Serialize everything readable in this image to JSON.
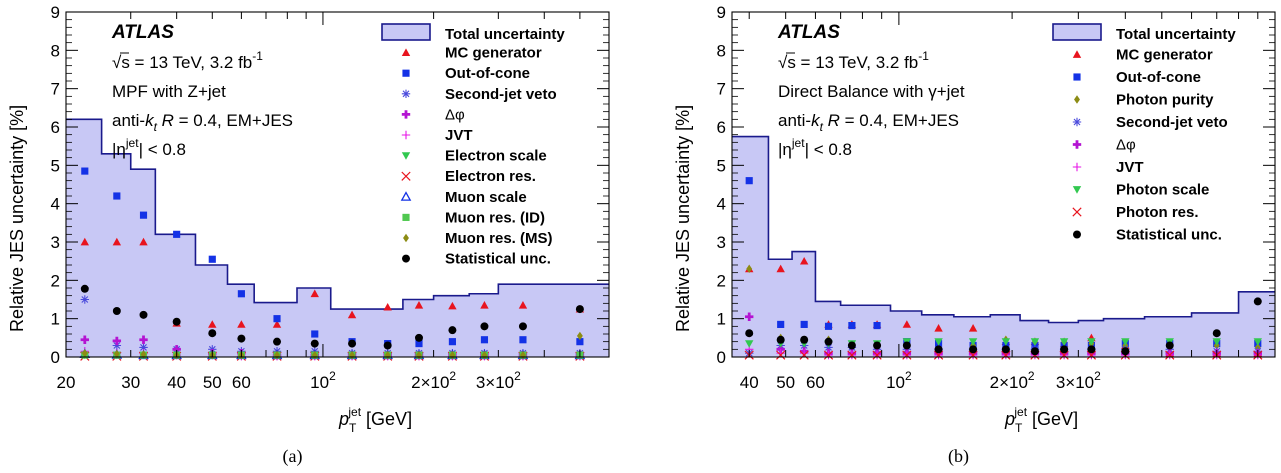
{
  "chart_data": [
    {
      "type": "scatter",
      "caption": "(a)",
      "xlabel": "p_T^jet [GeV]",
      "ylabel": "Relative JES uncertainty [%]",
      "xscale": "log",
      "xlim": [
        20,
        600
      ],
      "ylim": [
        0,
        9
      ],
      "xticklabels": [
        "20",
        "30",
        "40",
        "50",
        "60",
        "10^2",
        "2×10^2",
        "3×10^2"
      ],
      "yticklabels": [
        "0",
        "1",
        "2",
        "3",
        "4",
        "5",
        "6",
        "7",
        "8",
        "9"
      ],
      "annotations": [
        "ATLAS",
        "√s = 13 TeV, 3.2 fb^-1",
        "MPF with Z+jet",
        "anti-k_t R = 0.4, EM+JES",
        "|η^jet| < 0.8"
      ],
      "legend_position": "top-right",
      "total": {
        "name": "Total uncertainty",
        "color": "#c8c8f5",
        "edges": [
          20,
          25,
          30,
          35,
          45,
          55,
          65,
          85,
          105,
          135,
          165,
          200,
          250,
          300,
          400,
          600
        ],
        "values": [
          6.2,
          5.3,
          4.9,
          3.2,
          2.4,
          1.9,
          1.42,
          1.8,
          1.25,
          1.25,
          1.5,
          1.6,
          1.65,
          1.9,
          1.9
        ]
      },
      "series": [
        {
          "name": "MC generator",
          "marker": "triangle-up",
          "color": "#e8141e",
          "x": [
            22.5,
            27.5,
            32.5,
            40,
            50,
            60,
            75,
            95,
            120,
            150,
            182.5,
            225,
            275,
            350,
            500
          ],
          "y": [
            3.0,
            3.0,
            3.0,
            0.88,
            0.85,
            0.85,
            0.85,
            1.65,
            1.1,
            1.3,
            1.35,
            1.33,
            1.35,
            1.35,
            1.25
          ]
        },
        {
          "name": "Out-of-cone",
          "marker": "square",
          "color": "#1432e6",
          "x": [
            22.5,
            27.5,
            32.5,
            40,
            50,
            60,
            75,
            95,
            120,
            150,
            182.5,
            225,
            275,
            350,
            500
          ],
          "y": [
            4.85,
            4.2,
            3.7,
            3.2,
            2.55,
            1.65,
            1.0,
            0.6,
            0.4,
            0.35,
            0.35,
            0.4,
            0.45,
            0.45,
            0.4
          ]
        },
        {
          "name": "Second-jet veto",
          "marker": "asterisk",
          "color": "#4a4adc",
          "x": [
            22.5,
            27.5,
            32.5,
            40,
            50,
            60,
            75,
            95,
            120,
            150,
            182.5,
            225,
            275,
            350,
            500
          ],
          "y": [
            1.5,
            0.3,
            0.25,
            0.2,
            0.2,
            0.15,
            0.15,
            0.15,
            0.1,
            0.1,
            0.1,
            0.1,
            0.1,
            0.1,
            0.1
          ]
        },
        {
          "name": "Δφ",
          "marker": "plus-bold",
          "color": "#b414d2",
          "x": [
            22.5,
            27.5,
            32.5,
            40,
            50,
            60,
            75,
            95,
            120,
            150,
            182.5,
            225,
            275,
            350,
            500
          ],
          "y": [
            0.45,
            0.42,
            0.45,
            0.2,
            0.1,
            0.1,
            0.05,
            0.05,
            0.05,
            0.05,
            0.05,
            0.05,
            0.05,
            0.05,
            0.05
          ]
        },
        {
          "name": "JVT",
          "marker": "plus-thin",
          "color": "#e614e6",
          "x": [
            22.5,
            27.5,
            32.5,
            40,
            50,
            60,
            75,
            95,
            120,
            150,
            182.5,
            225,
            275,
            350,
            500
          ],
          "y": [
            0.15,
            0.1,
            0.1,
            0.05,
            0.05,
            0.02,
            0.02,
            0.02,
            0.02,
            0.02,
            0.02,
            0.02,
            0.02,
            0.02,
            0.02
          ]
        },
        {
          "name": "Electron scale",
          "marker": "triangle-down",
          "color": "#32c850",
          "x": [
            22.5,
            27.5,
            32.5,
            40,
            50,
            60,
            75,
            95,
            120,
            150,
            182.5,
            225,
            275,
            350,
            500
          ],
          "y": [
            0.05,
            0.05,
            0.05,
            0.05,
            0.05,
            0.05,
            0.05,
            0.05,
            0.05,
            0.05,
            0.05,
            0.05,
            0.05,
            0.05,
            0.05
          ]
        },
        {
          "name": "Electron res.",
          "marker": "cross",
          "color": "#e8141e",
          "x": [
            22.5,
            27.5,
            32.5,
            40,
            50,
            60,
            75,
            95,
            120,
            150,
            182.5,
            225,
            275,
            350,
            500
          ],
          "y": [
            0.02,
            0.02,
            0.02,
            0.02,
            0.02,
            0.02,
            0.02,
            0.02,
            0.02,
            0.02,
            0.02,
            0.02,
            0.02,
            0.02,
            0.02
          ]
        },
        {
          "name": "Muon scale",
          "marker": "triangle-up-open",
          "color": "#1432e6",
          "x": [
            22.5,
            27.5,
            32.5,
            40,
            50,
            60,
            75,
            95,
            120,
            150,
            182.5,
            225,
            275,
            350,
            500
          ],
          "y": [
            0.08,
            0.06,
            0.05,
            0.05,
            0.05,
            0.05,
            0.05,
            0.05,
            0.05,
            0.05,
            0.05,
            0.05,
            0.05,
            0.05,
            0.05
          ]
        },
        {
          "name": "Muon res. (ID)",
          "marker": "square",
          "color": "#50c850",
          "x": [
            22.5,
            27.5,
            32.5,
            40,
            50,
            60,
            75,
            95,
            120,
            150,
            182.5,
            225,
            275,
            350,
            500
          ],
          "y": [
            0.05,
            0.05,
            0.05,
            0.05,
            0.05,
            0.05,
            0.05,
            0.05,
            0.05,
            0.05,
            0.05,
            0.05,
            0.05,
            0.05,
            0.05
          ]
        },
        {
          "name": "Muon res. (MS)",
          "marker": "diamond",
          "color": "#8c8c14",
          "x": [
            22.5,
            27.5,
            32.5,
            40,
            50,
            60,
            75,
            95,
            120,
            150,
            182.5,
            225,
            275,
            350,
            500
          ],
          "y": [
            0.1,
            0.08,
            0.07,
            0.05,
            0.05,
            0.05,
            0.05,
            0.05,
            0.05,
            0.05,
            0.05,
            0.05,
            0.05,
            0.05,
            0.55
          ]
        },
        {
          "name": "Statistical unc.",
          "marker": "circle",
          "color": "#000000",
          "x": [
            22.5,
            27.5,
            32.5,
            40,
            50,
            60,
            75,
            95,
            120,
            150,
            182.5,
            225,
            275,
            350,
            500
          ],
          "y": [
            1.78,
            1.2,
            1.1,
            0.92,
            0.62,
            0.48,
            0.4,
            0.35,
            0.35,
            0.3,
            0.5,
            0.7,
            0.8,
            0.8,
            1.25
          ]
        }
      ]
    },
    {
      "type": "scatter",
      "caption": "(b)",
      "xlabel": "p_T^jet [GeV]",
      "ylabel": "Relative JES uncertainty [%]",
      "xscale": "log",
      "xlim": [
        36,
        1000
      ],
      "ylim": [
        0,
        9
      ],
      "xticklabels": [
        "40",
        "50",
        "60",
        "10^2",
        "2×10^2",
        "3×10^2"
      ],
      "yticklabels": [
        "0",
        "1",
        "2",
        "3",
        "4",
        "5",
        "6",
        "7",
        "8",
        "9"
      ],
      "annotations": [
        "ATLAS",
        "√s = 13 TeV, 3.2 fb^-1",
        "Direct Balance with γ+jet",
        "anti-k_t R = 0.4, EM+JES",
        "|η^jet| < 0.8"
      ],
      "legend_position": "top-right",
      "total": {
        "name": "Total uncertainty",
        "color": "#c8c8f5",
        "edges": [
          36,
          45,
          52,
          60,
          70,
          80,
          95,
          115,
          140,
          175,
          210,
          250,
          300,
          350,
          450,
          600,
          800,
          1000
        ],
        "values": [
          5.75,
          2.55,
          2.75,
          1.45,
          1.35,
          1.35,
          1.2,
          1.1,
          1.05,
          1.1,
          0.95,
          0.9,
          0.95,
          1.0,
          1.05,
          1.15,
          1.7
        ]
      },
      "series": [
        {
          "name": "MC generator",
          "marker": "triangle-up",
          "color": "#e8141e",
          "x": [
            40,
            48.5,
            56,
            65,
            75,
            87.5,
            105,
            127.5,
            157.5,
            192.5,
            230,
            275,
            325,
            400,
            525,
            700,
            900
          ],
          "y": [
            2.3,
            2.3,
            2.5,
            0.85,
            0.85,
            0.85,
            0.85,
            0.75,
            0.75,
            0.4,
            0.4,
            0.35,
            0.5,
            0.3,
            0.1,
            0.1,
            0.1
          ]
        },
        {
          "name": "Out-of-cone",
          "marker": "square",
          "color": "#1432e6",
          "x": [
            40,
            48.5,
            56,
            65,
            75,
            87.5,
            105,
            127.5,
            157.5,
            192.5,
            230,
            275,
            325,
            400,
            525,
            700,
            900
          ],
          "y": [
            4.6,
            0.85,
            0.85,
            0.8,
            0.82,
            0.82,
            0.4,
            0.35,
            0.3,
            0.3,
            0.3,
            0.3,
            0.3,
            0.35,
            0.35,
            0.35,
            0.35
          ]
        },
        {
          "name": "Photon purity",
          "marker": "diamond",
          "color": "#8c8c14",
          "x": [
            40,
            48.5,
            56,
            65,
            75,
            87.5,
            105,
            127.5,
            157.5,
            192.5,
            230,
            275,
            325,
            400,
            525,
            700,
            900
          ],
          "y": [
            2.3,
            0.5,
            0.45,
            0.45,
            0.3,
            0.3,
            0.25,
            0.2,
            0.3,
            0.45,
            0.4,
            0.4,
            0.35,
            0.3,
            0.35,
            0.3,
            0.25
          ]
        },
        {
          "name": "Second-jet veto",
          "marker": "asterisk",
          "color": "#4a4adc",
          "x": [
            40,
            48.5,
            56,
            65,
            75,
            87.5,
            105,
            127.5,
            157.5,
            192.5,
            230,
            275,
            325,
            400,
            525,
            700,
            900
          ],
          "y": [
            0.1,
            0.3,
            0.3,
            0.25,
            0.25,
            0.2,
            0.2,
            0.2,
            0.2,
            0.2,
            0.2,
            0.2,
            0.2,
            0.2,
            0.2,
            0.15,
            0.15
          ]
        },
        {
          "name": "Δφ",
          "marker": "plus-bold",
          "color": "#b414d2",
          "x": [
            40,
            48.5,
            56,
            65,
            75,
            87.5,
            105,
            127.5,
            157.5,
            192.5,
            230,
            275,
            325,
            400,
            525,
            700,
            900
          ],
          "y": [
            1.05,
            0.2,
            0.15,
            0.1,
            0.1,
            0.1,
            0.1,
            0.1,
            0.1,
            0.1,
            0.1,
            0.1,
            0.1,
            0.1,
            0.1,
            0.1,
            0.1
          ]
        },
        {
          "name": "JVT",
          "marker": "plus-thin",
          "color": "#e614e6",
          "x": [
            40,
            48.5,
            56,
            65,
            75,
            87.5,
            105,
            127.5,
            157.5,
            192.5,
            230,
            275,
            325,
            400,
            525,
            700,
            900
          ],
          "y": [
            0.2,
            0.1,
            0.1,
            0.05,
            0.05,
            0.05,
            0.05,
            0.05,
            0.05,
            0.05,
            0.05,
            0.05,
            0.05,
            0.05,
            0.05,
            0.05,
            0.05
          ]
        },
        {
          "name": "Photon scale",
          "marker": "triangle-down",
          "color": "#32c850",
          "x": [
            40,
            48.5,
            56,
            65,
            75,
            87.5,
            105,
            127.5,
            157.5,
            192.5,
            230,
            275,
            325,
            400,
            525,
            700,
            900
          ],
          "y": [
            0.35,
            0.35,
            0.35,
            0.35,
            0.35,
            0.35,
            0.4,
            0.4,
            0.4,
            0.4,
            0.4,
            0.4,
            0.4,
            0.4,
            0.4,
            0.4,
            0.4
          ]
        },
        {
          "name": "Photon res.",
          "marker": "cross",
          "color": "#e8141e",
          "x": [
            40,
            48.5,
            56,
            65,
            75,
            87.5,
            105,
            127.5,
            157.5,
            192.5,
            230,
            275,
            325,
            400,
            525,
            700,
            900
          ],
          "y": [
            0.05,
            0.05,
            0.05,
            0.05,
            0.05,
            0.05,
            0.05,
            0.05,
            0.05,
            0.05,
            0.05,
            0.05,
            0.05,
            0.05,
            0.05,
            0.05,
            0.05
          ]
        },
        {
          "name": "Statistical unc.",
          "marker": "circle",
          "color": "#000000",
          "x": [
            40,
            48.5,
            56,
            65,
            75,
            87.5,
            105,
            127.5,
            157.5,
            192.5,
            230,
            275,
            325,
            400,
            525,
            700,
            900
          ],
          "y": [
            0.62,
            0.45,
            0.45,
            0.4,
            0.3,
            0.3,
            0.3,
            0.2,
            0.2,
            0.2,
            0.15,
            0.2,
            0.2,
            0.15,
            0.3,
            0.62,
            1.45
          ]
        }
      ]
    }
  ]
}
